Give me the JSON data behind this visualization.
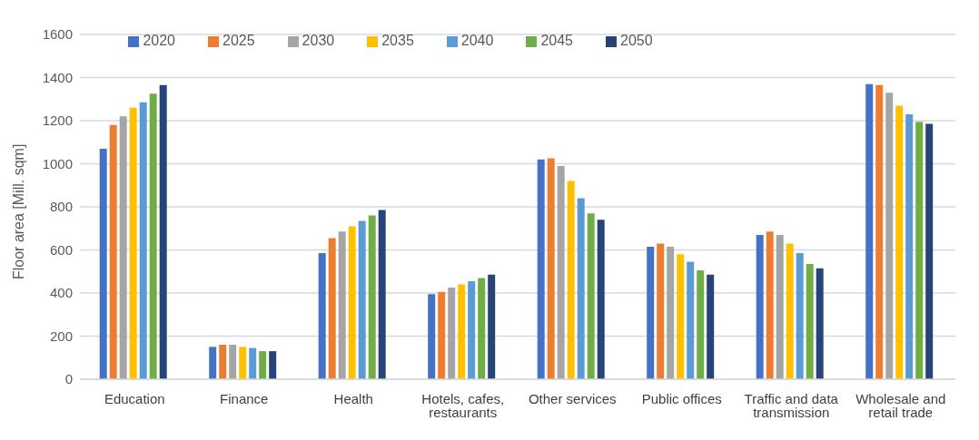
{
  "chart_data": {
    "type": "bar",
    "ylabel": "Floor area [Mill. sqm]",
    "categories": [
      "Education",
      "Finance",
      "Health",
      "Hotels, cafes, restaurants",
      "Other services",
      "Public offices",
      "Traffic and data transmission",
      "Wholesale and retail trade"
    ],
    "series": [
      {
        "name": "2020",
        "color": "#4472c4",
        "values": [
          1070,
          150,
          585,
          395,
          1020,
          615,
          670,
          1370
        ]
      },
      {
        "name": "2025",
        "color": "#ed7d31",
        "values": [
          1180,
          160,
          655,
          405,
          1025,
          630,
          685,
          1365
        ]
      },
      {
        "name": "2030",
        "color": "#a5a5a5",
        "values": [
          1220,
          160,
          685,
          425,
          990,
          615,
          670,
          1330
        ]
      },
      {
        "name": "2035",
        "color": "#ffc000",
        "values": [
          1260,
          150,
          710,
          440,
          920,
          580,
          630,
          1270
        ]
      },
      {
        "name": "2040",
        "color": "#5b9bd5",
        "values": [
          1285,
          145,
          735,
          455,
          840,
          545,
          585,
          1230
        ]
      },
      {
        "name": "2045",
        "color": "#70ad47",
        "values": [
          1325,
          130,
          760,
          470,
          770,
          505,
          535,
          1195
        ]
      },
      {
        "name": "2050",
        "color": "#264478",
        "values": [
          1365,
          130,
          785,
          485,
          740,
          485,
          515,
          1185
        ]
      }
    ],
    "ylim": [
      0,
      1600
    ],
    "yticks": [
      0,
      200,
      400,
      600,
      800,
      1000,
      1200,
      1400,
      1600
    ],
    "grid": "y",
    "legend": "top"
  }
}
